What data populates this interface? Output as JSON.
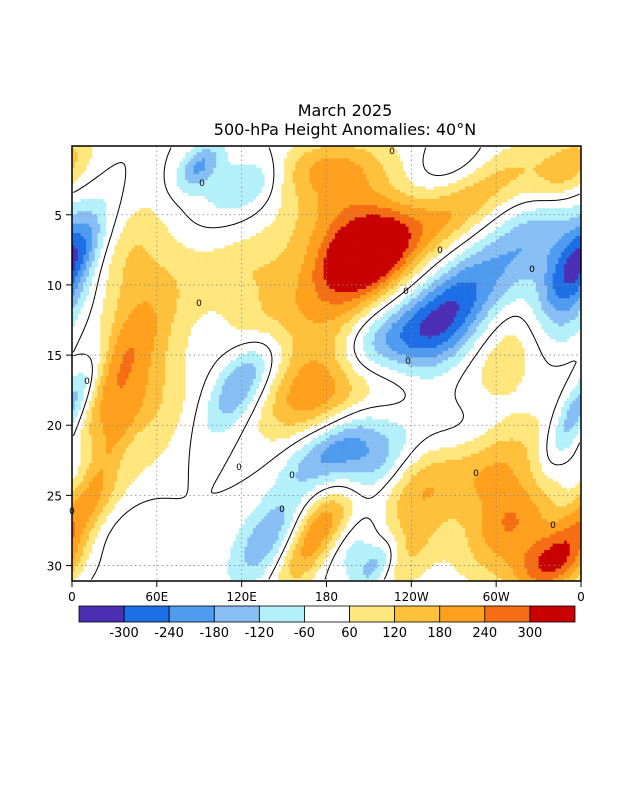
{
  "chart_data": {
    "type": "heatmap",
    "title": "March 2025",
    "subtitle": "500-hPa Height Anomalies: 40°N",
    "xlabel": "",
    "ylabel": "",
    "x_ticks": [
      "0",
      "60E",
      "120E",
      "180",
      "120W",
      "60W",
      "0"
    ],
    "y_ticks": [
      5,
      10,
      15,
      20,
      25,
      30
    ],
    "xlim": [
      0,
      360
    ],
    "ylim": [
      1,
      31
    ],
    "y_reversed": true,
    "grid": "dotted",
    "legend": {
      "placement": "bottom",
      "labels": [
        "-300",
        "-240",
        "-180",
        "-120",
        "-60",
        "60",
        "120",
        "180",
        "240",
        "300"
      ],
      "colors": [
        "#4b2fb4",
        "#1e6ee6",
        "#4f9bf0",
        "#87bff5",
        "#b4f0fa",
        "#ffffff",
        "#ffe67d",
        "#ffc13c",
        "#ffa01e",
        "#f56e14",
        "#c80000"
      ]
    },
    "zero_contour": true,
    "contour_color": "#000000",
    "contour_labels": [
      "0",
      "0",
      "0",
      "0",
      "0",
      "0",
      "0",
      "0",
      "0",
      "0",
      "0",
      "0",
      "0",
      "0"
    ],
    "features": [
      {
        "lon": 210,
        "day": 7.5,
        "value": 330,
        "sx": 22,
        "sy": 2.0
      },
      {
        "lon": 200,
        "day": 10,
        "value": 200,
        "sx": 30,
        "sy": 3.5
      },
      {
        "lon": 190,
        "day": 4,
        "value": 160,
        "sx": 26,
        "sy": 2.5
      },
      {
        "lon": 170,
        "day": 1.5,
        "value": 140,
        "sx": 30,
        "sy": 1.5
      },
      {
        "lon": 270,
        "day": 5,
        "value": 140,
        "sx": 20,
        "sy": 2.0
      },
      {
        "lon": 310,
        "day": 2,
        "value": 120,
        "sx": 24,
        "sy": 1.8
      },
      {
        "lon": 350,
        "day": 2,
        "value": 190,
        "sx": 15,
        "sy": 2.0
      },
      {
        "lon": 30,
        "day": 8,
        "value": 140,
        "sx": 25,
        "sy": 3.0
      },
      {
        "lon": 35,
        "day": 15,
        "value": 240,
        "sx": 22,
        "sy": 4.0
      },
      {
        "lon": 45,
        "day": 20,
        "value": 120,
        "sx": 25,
        "sy": 3.0
      },
      {
        "lon": 15,
        "day": 25,
        "value": 200,
        "sx": 18,
        "sy": 3.5
      },
      {
        "lon": 350,
        "day": 28,
        "value": 160,
        "sx": 18,
        "sy": 3.0
      },
      {
        "lon": 120,
        "day": 9,
        "value": 100,
        "sx": 26,
        "sy": 2.0
      },
      {
        "lon": 140,
        "day": 12.5,
        "value": 100,
        "sx": 20,
        "sy": 2.0
      },
      {
        "lon": 175,
        "day": 17.5,
        "value": 230,
        "sx": 28,
        "sy": 2.5
      },
      {
        "lon": 230,
        "day": 17,
        "value": 100,
        "sx": 20,
        "sy": 1.8
      },
      {
        "lon": 250,
        "day": 24,
        "value": 180,
        "sx": 22,
        "sy": 3.0
      },
      {
        "lon": 165,
        "day": 28.5,
        "value": 260,
        "sx": 15,
        "sy": 2.5
      },
      {
        "lon": 185,
        "day": 26,
        "value": 110,
        "sx": 20,
        "sy": 2.0
      },
      {
        "lon": 320,
        "day": 14,
        "value": 220,
        "sx": 22,
        "sy": 3.0
      },
      {
        "lon": 300,
        "day": 23,
        "value": 150,
        "sx": 20,
        "sy": 2.5
      },
      {
        "lon": 310,
        "day": 27,
        "value": 220,
        "sx": 20,
        "sy": 2.5
      },
      {
        "lon": 340,
        "day": 30,
        "value": 170,
        "sx": 22,
        "sy": 1.5
      },
      {
        "lon": 225,
        "day": 29.5,
        "value": 140,
        "sx": 20,
        "sy": 2.0
      },
      {
        "lon": 90,
        "day": 1.5,
        "value": -180,
        "sx": 10,
        "sy": 1.2
      },
      {
        "lon": 130,
        "day": 2.5,
        "value": -130,
        "sx": 15,
        "sy": 1.5
      },
      {
        "lon": 330,
        "day": 6,
        "value": -160,
        "sx": 18,
        "sy": 3.0
      },
      {
        "lon": 360,
        "day": 8,
        "value": -300,
        "sx": 14,
        "sy": 2.5
      },
      {
        "lon": 345,
        "day": 12,
        "value": -260,
        "sx": 22,
        "sy": 3.0
      },
      {
        "lon": 280,
        "day": 10,
        "value": -140,
        "sx": 20,
        "sy": 3.0
      },
      {
        "lon": 250,
        "day": 13.5,
        "value": -270,
        "sx": 25,
        "sy": 2.8
      },
      {
        "lon": 210,
        "day": 14,
        "value": -150,
        "sx": 18,
        "sy": 2.0
      },
      {
        "lon": 120,
        "day": 17,
        "value": -220,
        "sx": 14,
        "sy": 2.5
      },
      {
        "lon": 360,
        "day": 18.5,
        "value": -270,
        "sx": 10,
        "sy": 3.0
      },
      {
        "lon": 360,
        "day": 24,
        "value": -160,
        "sx": 12,
        "sy": 2.5
      },
      {
        "lon": 270,
        "day": 20.5,
        "value": -100,
        "sx": 22,
        "sy": 2.0
      },
      {
        "lon": 195,
        "day": 21.5,
        "value": -180,
        "sx": 15,
        "sy": 2.0
      },
      {
        "lon": 215,
        "day": 23,
        "value": -160,
        "sx": 15,
        "sy": 2.0
      },
      {
        "lon": 170,
        "day": 22,
        "value": -120,
        "sx": 15,
        "sy": 1.8
      },
      {
        "lon": 40,
        "day": 22,
        "value": -110,
        "sx": 10,
        "sy": 2.0
      },
      {
        "lon": 145,
        "day": 28,
        "value": -230,
        "sx": 18,
        "sy": 2.5
      },
      {
        "lon": 200,
        "day": 28.5,
        "value": -150,
        "sx": 14,
        "sy": 2.0
      },
      {
        "lon": 215,
        "day": 30,
        "value": -240,
        "sx": 10,
        "sy": 1.5
      },
      {
        "lon": 15,
        "day": 28,
        "value": -120,
        "sx": 18,
        "sy": 3.0
      },
      {
        "lon": 100,
        "day": 3.5,
        "value": -60,
        "sx": 20,
        "sy": 2.0
      },
      {
        "lon": 270,
        "day": 1.5,
        "value": -80,
        "sx": 20,
        "sy": 1.5
      }
    ]
  }
}
